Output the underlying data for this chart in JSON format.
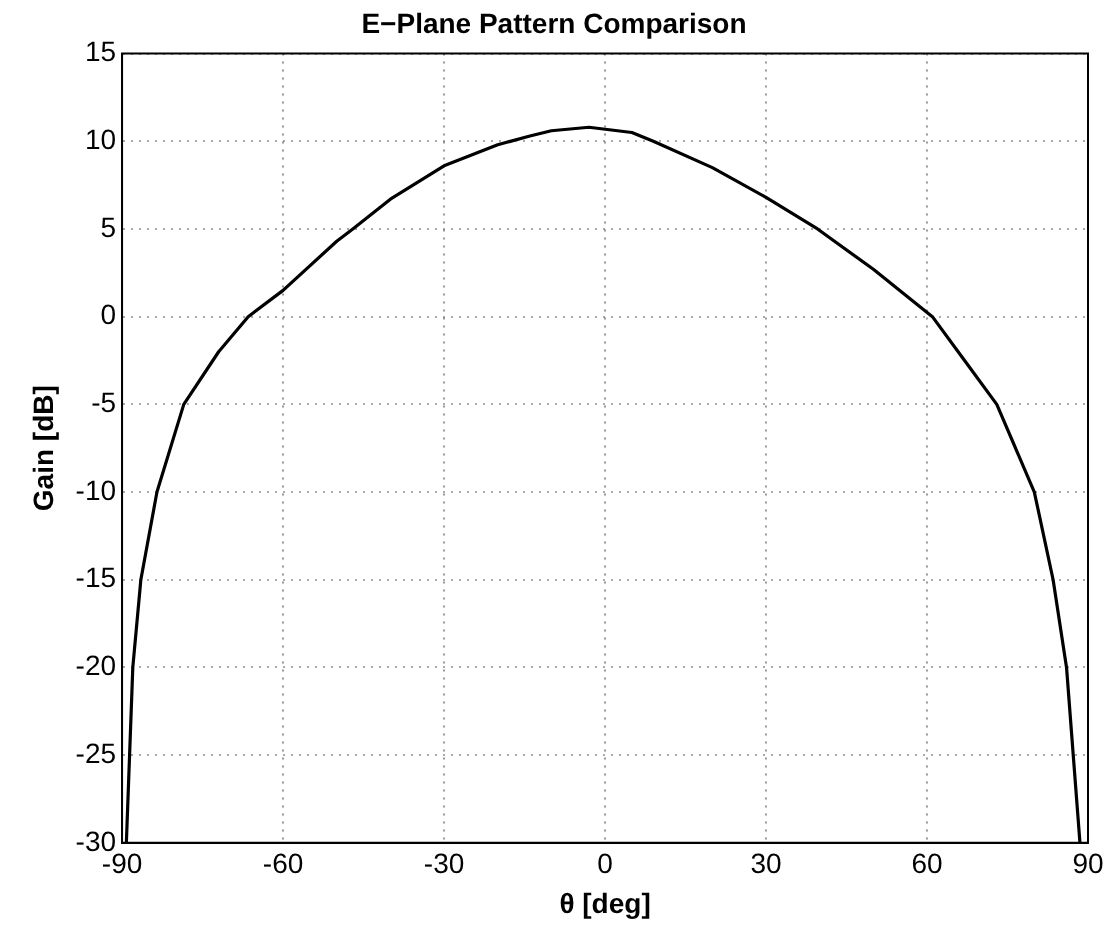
{
  "chart_data": {
    "type": "line",
    "title": "E−Plane Pattern Comparison",
    "xlabel": "θ [deg]",
    "ylabel": "Gain [dB]",
    "xlim": [
      -90,
      90
    ],
    "xticks": [
      -90,
      -60,
      -30,
      0,
      30,
      60,
      90
    ],
    "ylim": [
      -30,
      15
    ],
    "yticks": [
      -30,
      -25,
      -20,
      -15,
      -10,
      -5,
      0,
      5,
      10,
      15
    ],
    "grid": true,
    "legend": false,
    "marker": "none",
    "line_style": "solid",
    "series": [
      {
        "color": "#000000",
        "x": [
          -89.2,
          -88,
          -86.5,
          -83.5,
          -78.5,
          -72,
          -66.5,
          -60,
          -50,
          -47,
          -40,
          -30,
          -20,
          -14,
          -10,
          -3,
          5,
          9,
          20,
          30,
          39.6,
          50,
          61,
          67,
          73,
          80,
          83.5,
          86,
          88.5
        ],
        "values": [
          -30,
          -20,
          -15,
          -10,
          -5,
          -2,
          0,
          1.5,
          4.3,
          5,
          6.7,
          8.6,
          9.8,
          10.3,
          10.6,
          10.8,
          10.5,
          10,
          8.5,
          6.8,
          5,
          2.7,
          0,
          -2.5,
          -5,
          -10,
          -15,
          -20,
          -30
        ]
      }
    ]
  }
}
